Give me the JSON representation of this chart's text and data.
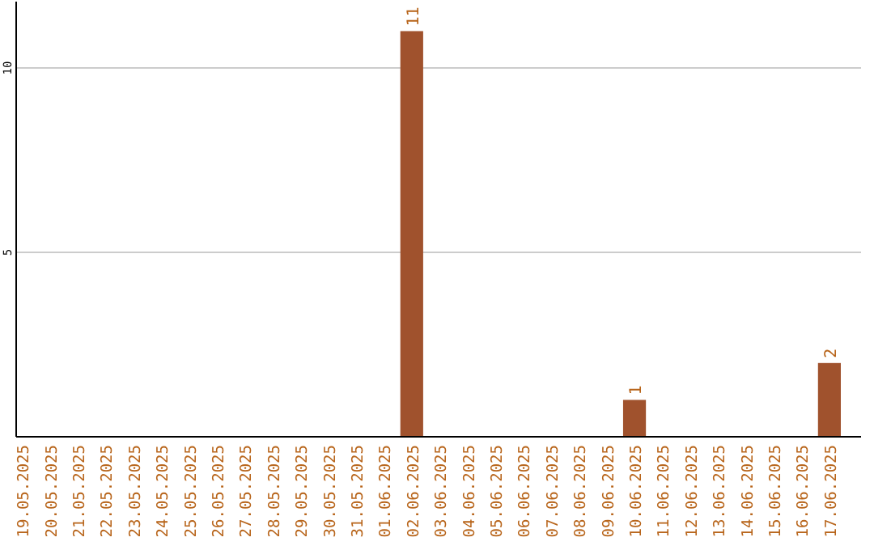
{
  "chart_data": {
    "type": "bar",
    "categories": [
      "19.05.2025",
      "20.05.2025",
      "21.05.2025",
      "22.05.2025",
      "23.05.2025",
      "24.05.2025",
      "25.05.2025",
      "26.05.2025",
      "27.05.2025",
      "28.05.2025",
      "29.05.2025",
      "30.05.2025",
      "31.05.2025",
      "01.06.2025",
      "02.06.2025",
      "03.06.2025",
      "04.06.2025",
      "05.06.2025",
      "06.06.2025",
      "07.06.2025",
      "08.06.2025",
      "09.06.2025",
      "10.06.2025",
      "11.06.2025",
      "12.06.2025",
      "13.06.2025",
      "14.06.2025",
      "15.06.2025",
      "16.06.2025",
      "17.06.2025"
    ],
    "values": [
      0,
      0,
      0,
      0,
      0,
      0,
      0,
      0,
      0,
      0,
      0,
      0,
      0,
      0,
      11,
      0,
      0,
      0,
      0,
      0,
      0,
      0,
      1,
      0,
      0,
      0,
      0,
      0,
      0,
      2
    ],
    "value_labels": [
      null,
      null,
      null,
      null,
      null,
      null,
      null,
      null,
      null,
      null,
      null,
      null,
      null,
      null,
      "11",
      null,
      null,
      null,
      null,
      null,
      null,
      null,
      "1",
      null,
      null,
      null,
      null,
      null,
      null,
      "2"
    ],
    "color": "#a0522d",
    "ylim": [
      0,
      11.8
    ],
    "yticks": [
      5,
      10
    ],
    "grid": "y"
  }
}
